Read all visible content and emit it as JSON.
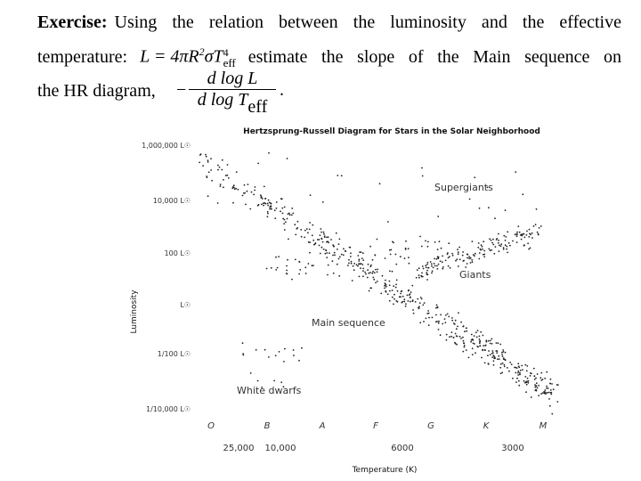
{
  "exercise": {
    "label": "Exercise:",
    "line1": "Using the relation between the luminosity and the effective",
    "line2_start": "temperature:",
    "formula": {
      "base": "L = 4πR",
      "r_exp": "2",
      "sigma_t": "σT",
      "t_exp": "4",
      "t_sub": "eff"
    },
    "line2_end": "estimate the slope of the Main sequence on",
    "line3_start": "the HR diagram,",
    "minus": "−",
    "numerator": "d log L",
    "denominator": "d log T",
    "denominator_sub": "eff",
    "period": "."
  },
  "figure": {
    "title": "Hertzsprung-Russell Diagram for Stars in the Solar Neighborhood",
    "y_axis_title": "Luminosity",
    "x_axis_title": "Temperature (K)",
    "y_labels": [
      "1,000,000 L☉",
      "10,000 L☉",
      "100 L☉",
      "L☉",
      "1/100 L☉",
      "1/10,000 L☉"
    ],
    "spectral_classes": [
      "O",
      "B",
      "A",
      "F",
      "G",
      "K",
      "M"
    ],
    "temperatures": [
      "25,000",
      "10,000",
      "6000",
      "3000"
    ],
    "regions": [
      "Supergiants",
      "Giants",
      "Main sequence",
      "White dwarfs"
    ]
  }
}
